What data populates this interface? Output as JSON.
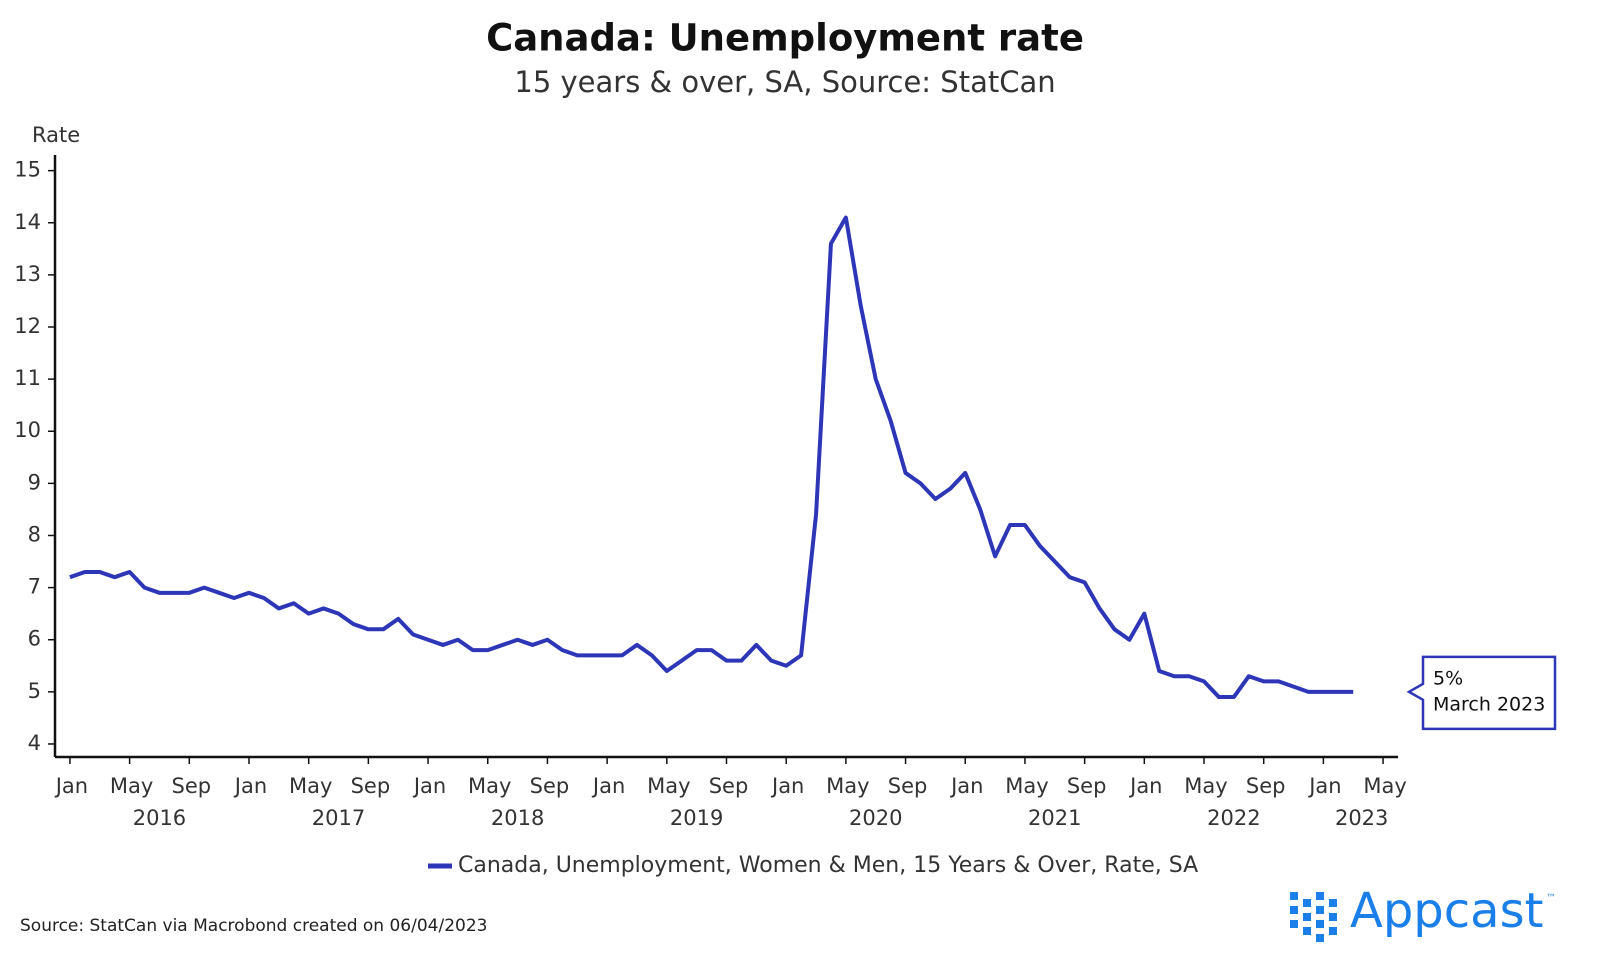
{
  "chart_data": {
    "type": "line",
    "title": "Canada: Unemployment rate",
    "subtitle": "15 years & over, SA, Source: StatCan",
    "y_label": "Rate",
    "x": [
      "2016-01",
      "2016-02",
      "2016-03",
      "2016-04",
      "2016-05",
      "2016-06",
      "2016-07",
      "2016-08",
      "2016-09",
      "2016-10",
      "2016-11",
      "2016-12",
      "2017-01",
      "2017-02",
      "2017-03",
      "2017-04",
      "2017-05",
      "2017-06",
      "2017-07",
      "2017-08",
      "2017-09",
      "2017-10",
      "2017-11",
      "2017-12",
      "2018-01",
      "2018-02",
      "2018-03",
      "2018-04",
      "2018-05",
      "2018-06",
      "2018-07",
      "2018-08",
      "2018-09",
      "2018-10",
      "2018-11",
      "2018-12",
      "2019-01",
      "2019-02",
      "2019-03",
      "2019-04",
      "2019-05",
      "2019-06",
      "2019-07",
      "2019-08",
      "2019-09",
      "2019-10",
      "2019-11",
      "2019-12",
      "2020-01",
      "2020-02",
      "2020-03",
      "2020-04",
      "2020-05",
      "2020-06",
      "2020-07",
      "2020-08",
      "2020-09",
      "2020-10",
      "2020-11",
      "2020-12",
      "2021-01",
      "2021-02",
      "2021-03",
      "2021-04",
      "2021-05",
      "2021-06",
      "2021-07",
      "2021-08",
      "2021-09",
      "2021-10",
      "2021-11",
      "2021-12",
      "2022-01",
      "2022-02",
      "2022-03",
      "2022-04",
      "2022-05",
      "2022-06",
      "2022-07",
      "2022-08",
      "2022-09",
      "2022-10",
      "2022-11",
      "2022-12",
      "2023-01",
      "2023-02",
      "2023-03"
    ],
    "series": [
      {
        "name": "Canada, Unemployment, Women & Men, 15 Years & Over, Rate, SA",
        "color": "#2e36b8",
        "values": [
          7.2,
          7.3,
          7.3,
          7.2,
          7.3,
          7.0,
          6.9,
          6.9,
          6.9,
          7.0,
          6.9,
          6.8,
          6.9,
          6.8,
          6.6,
          6.7,
          6.5,
          6.6,
          6.5,
          6.3,
          6.2,
          6.2,
          6.4,
          6.1,
          6.0,
          5.9,
          6.0,
          5.8,
          5.8,
          5.9,
          6.0,
          5.9,
          6.0,
          5.8,
          5.7,
          5.7,
          5.7,
          5.7,
          5.9,
          5.7,
          5.4,
          5.6,
          5.8,
          5.8,
          5.6,
          5.6,
          5.9,
          5.6,
          5.5,
          5.7,
          8.4,
          13.6,
          14.1,
          12.4,
          11.0,
          10.2,
          9.2,
          9.0,
          8.7,
          8.9,
          9.2,
          8.5,
          7.6,
          8.2,
          8.2,
          7.8,
          7.5,
          7.2,
          7.1,
          6.6,
          6.2,
          6.0,
          6.5,
          5.4,
          5.3,
          5.3,
          5.2,
          4.9,
          4.9,
          5.3,
          5.2,
          5.2,
          5.1,
          5.0,
          5.0,
          5.0,
          5.0
        ]
      }
    ],
    "xlim": [
      "2015-12",
      "2023-06"
    ],
    "xticks": [
      {
        "value": "2016-01",
        "label": "Jan"
      },
      {
        "value": "2016-05",
        "label": "May"
      },
      {
        "value": "2016-09",
        "label": "Sep"
      },
      {
        "value": "2017-01",
        "label": "Jan"
      },
      {
        "value": "2017-05",
        "label": "May"
      },
      {
        "value": "2017-09",
        "label": "Sep"
      },
      {
        "value": "2018-01",
        "label": "Jan"
      },
      {
        "value": "2018-05",
        "label": "May"
      },
      {
        "value": "2018-09",
        "label": "Sep"
      },
      {
        "value": "2019-01",
        "label": "Jan"
      },
      {
        "value": "2019-05",
        "label": "May"
      },
      {
        "value": "2019-09",
        "label": "Sep"
      },
      {
        "value": "2020-01",
        "label": "Jan"
      },
      {
        "value": "2020-05",
        "label": "May"
      },
      {
        "value": "2020-09",
        "label": "Sep"
      },
      {
        "value": "2021-01",
        "label": "Jan"
      },
      {
        "value": "2021-05",
        "label": "May"
      },
      {
        "value": "2021-09",
        "label": "Sep"
      },
      {
        "value": "2022-01",
        "label": "Jan"
      },
      {
        "value": "2022-05",
        "label": "May"
      },
      {
        "value": "2022-09",
        "label": "Sep"
      },
      {
        "value": "2023-01",
        "label": "Jan"
      },
      {
        "value": "2023-05",
        "label": "May"
      }
    ],
    "years": [
      2016,
      2017,
      2018,
      2019,
      2020,
      2021,
      2022,
      2023
    ],
    "ylim": [
      3.75,
      15.3
    ],
    "yticks": [
      4,
      5,
      6,
      7,
      8,
      9,
      10,
      11,
      12,
      13,
      14,
      15
    ],
    "grid": false,
    "legend": "bottom",
    "annotations": [
      "5%",
      "March 2023"
    ],
    "source": "Source: StatCan via Macrobond created on 06/04/2023",
    "logo": "Appcast",
    "logo_mark": "™"
  }
}
